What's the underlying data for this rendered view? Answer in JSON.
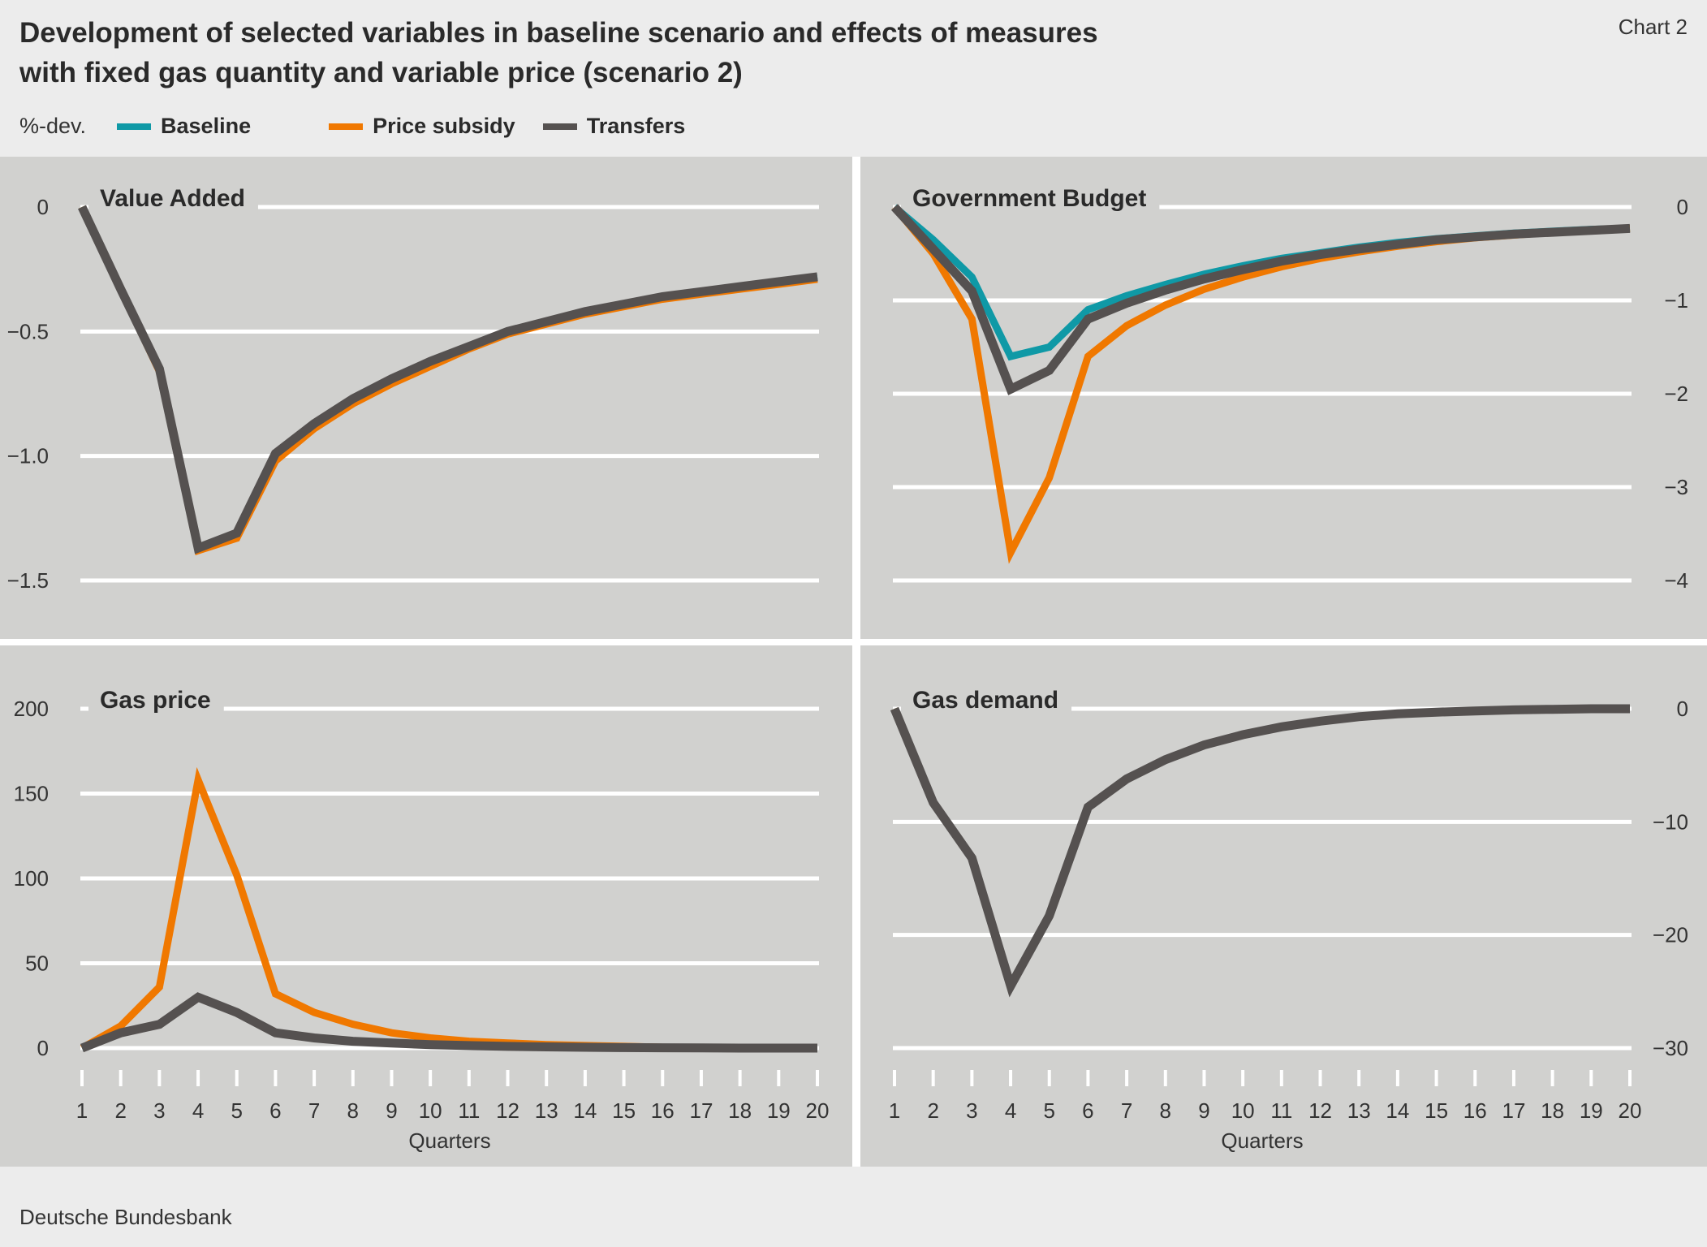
{
  "header": {
    "title_line1": "Development of selected variables in baseline scenario and effects of measures",
    "title_line2": "with fixed gas quantity and variable price (scenario 2)",
    "chart_number": "Chart 2"
  },
  "legend": {
    "unit": "%-dev.",
    "items": [
      {
        "label": "Baseline",
        "color": "#0f99a6"
      },
      {
        "label": "Price subsidy",
        "color": "#f07800"
      },
      {
        "label": "Transfers",
        "color": "#555150"
      }
    ]
  },
  "footer": {
    "source": "Deutsche Bundesbank"
  },
  "chart_data": [
    {
      "type": "line",
      "title": "Value Added",
      "xlabel": "",
      "x": [
        1,
        2,
        3,
        4,
        5,
        6,
        7,
        8,
        9,
        10,
        11,
        12,
        13,
        14,
        15,
        16,
        17,
        18,
        19,
        20
      ],
      "ylim": [
        -1.5,
        0
      ],
      "yticks": [
        "0",
        "−0.5",
        "−1.0",
        "−1.5"
      ],
      "ytick_values": [
        0,
        -0.5,
        -1.0,
        -1.5
      ],
      "y_axis_side": "left",
      "grid": true,
      "series": [
        {
          "name": "Baseline",
          "values": [
            0,
            -0.33,
            -0.65,
            -1.37,
            -1.31,
            -0.99,
            -0.87,
            -0.77,
            -0.69,
            -0.62,
            -0.56,
            -0.5,
            -0.46,
            -0.42,
            -0.39,
            -0.36,
            -0.34,
            -0.32,
            -0.3,
            -0.28
          ]
        },
        {
          "name": "Price subsidy",
          "values": [
            0,
            -0.33,
            -0.66,
            -1.38,
            -1.33,
            -1.02,
            -0.89,
            -0.79,
            -0.71,
            -0.64,
            -0.57,
            -0.51,
            -0.47,
            -0.43,
            -0.4,
            -0.37,
            -0.35,
            -0.33,
            -0.31,
            -0.29
          ]
        },
        {
          "name": "Transfers",
          "values": [
            0,
            -0.33,
            -0.65,
            -1.37,
            -1.31,
            -0.99,
            -0.87,
            -0.77,
            -0.69,
            -0.62,
            -0.56,
            -0.5,
            -0.46,
            -0.42,
            -0.39,
            -0.36,
            -0.34,
            -0.32,
            -0.3,
            -0.28
          ]
        }
      ]
    },
    {
      "type": "line",
      "title": "Government Budget",
      "xlabel": "",
      "x": [
        1,
        2,
        3,
        4,
        5,
        6,
        7,
        8,
        9,
        10,
        11,
        12,
        13,
        14,
        15,
        16,
        17,
        18,
        19,
        20
      ],
      "ylim": [
        -4,
        0
      ],
      "yticks": [
        "0",
        "−1",
        "−2",
        "−3",
        "−4"
      ],
      "ytick_values": [
        0,
        -1,
        -2,
        -3,
        -4
      ],
      "y_axis_side": "right",
      "grid": true,
      "series": [
        {
          "name": "Baseline",
          "values": [
            0,
            -0.35,
            -0.75,
            -1.6,
            -1.5,
            -1.1,
            -0.95,
            -0.83,
            -0.72,
            -0.63,
            -0.55,
            -0.49,
            -0.43,
            -0.38,
            -0.34,
            -0.31,
            -0.28,
            -0.26,
            -0.24,
            -0.23
          ]
        },
        {
          "name": "Price subsidy",
          "values": [
            0,
            -0.5,
            -1.2,
            -3.7,
            -2.9,
            -1.6,
            -1.27,
            -1.05,
            -0.88,
            -0.75,
            -0.64,
            -0.55,
            -0.48,
            -0.42,
            -0.37,
            -0.33,
            -0.3,
            -0.27,
            -0.25,
            -0.23
          ]
        },
        {
          "name": "Transfers",
          "values": [
            0,
            -0.45,
            -0.9,
            -1.95,
            -1.75,
            -1.2,
            -1.03,
            -0.89,
            -0.77,
            -0.67,
            -0.58,
            -0.51,
            -0.45,
            -0.4,
            -0.35,
            -0.32,
            -0.29,
            -0.27,
            -0.25,
            -0.23
          ]
        }
      ]
    },
    {
      "type": "line",
      "title": "Gas price",
      "xlabel": "Quarters",
      "x": [
        1,
        2,
        3,
        4,
        5,
        6,
        7,
        8,
        9,
        10,
        11,
        12,
        13,
        14,
        15,
        16,
        17,
        18,
        19,
        20
      ],
      "xticks": [
        "1",
        "2",
        "3",
        "4",
        "5",
        "6",
        "7",
        "8",
        "9",
        "10",
        "11",
        "12",
        "13",
        "14",
        "15",
        "16",
        "17",
        "18",
        "19",
        "20"
      ],
      "ylim": [
        0,
        200
      ],
      "yticks": [
        "200",
        "150",
        "100",
        "50",
        "0"
      ],
      "ytick_values": [
        200,
        150,
        100,
        50,
        0
      ],
      "y_axis_side": "left",
      "grid": true,
      "series": [
        {
          "name": "Baseline",
          "values": [
            0,
            9,
            14,
            30,
            21,
            9,
            6,
            4,
            3,
            2,
            1.5,
            1,
            0.7,
            0.5,
            0.3,
            0.2,
            0.1,
            0,
            0,
            0
          ]
        },
        {
          "name": "Price subsidy",
          "values": [
            0,
            13,
            36,
            158,
            102,
            32,
            21,
            14,
            9,
            6,
            4,
            3,
            2,
            1.5,
            1,
            0.5,
            0.3,
            0.2,
            0.1,
            0
          ]
        },
        {
          "name": "Transfers",
          "values": [
            0,
            9,
            14,
            30,
            21,
            9,
            6,
            4,
            3,
            2,
            1.5,
            1,
            0.7,
            0.5,
            0.3,
            0.2,
            0.1,
            0,
            0,
            0
          ]
        }
      ]
    },
    {
      "type": "line",
      "title": "Gas demand",
      "xlabel": "Quarters",
      "x": [
        1,
        2,
        3,
        4,
        5,
        6,
        7,
        8,
        9,
        10,
        11,
        12,
        13,
        14,
        15,
        16,
        17,
        18,
        19,
        20
      ],
      "xticks": [
        "1",
        "2",
        "3",
        "4",
        "5",
        "6",
        "7",
        "8",
        "9",
        "10",
        "11",
        "12",
        "13",
        "14",
        "15",
        "16",
        "17",
        "18",
        "19",
        "20"
      ],
      "ylim": [
        -30,
        0
      ],
      "yticks": [
        "0",
        "−10",
        "−20",
        "−30"
      ],
      "ytick_values": [
        0,
        -10,
        -20,
        -30
      ],
      "y_axis_side": "right",
      "grid": true,
      "series": [
        {
          "name": "Baseline",
          "values": [
            0,
            -8.3,
            -13.2,
            -24.5,
            -18.3,
            -8.7,
            -6.2,
            -4.5,
            -3.2,
            -2.3,
            -1.6,
            -1.1,
            -0.7,
            -0.45,
            -0.3,
            -0.2,
            -0.1,
            -0.05,
            0,
            0
          ]
        },
        {
          "name": "Price subsidy",
          "values": [
            0,
            -8.3,
            -13.2,
            -24.5,
            -18.3,
            -8.7,
            -6.2,
            -4.5,
            -3.2,
            -2.3,
            -1.6,
            -1.1,
            -0.7,
            -0.45,
            -0.3,
            -0.2,
            -0.1,
            -0.05,
            0,
            0
          ]
        },
        {
          "name": "Transfers",
          "values": [
            0,
            -8.3,
            -13.2,
            -24.5,
            -18.3,
            -8.7,
            -6.2,
            -4.5,
            -3.2,
            -2.3,
            -1.6,
            -1.1,
            -0.7,
            -0.45,
            -0.3,
            -0.2,
            -0.1,
            -0.05,
            0,
            0
          ]
        }
      ]
    }
  ]
}
